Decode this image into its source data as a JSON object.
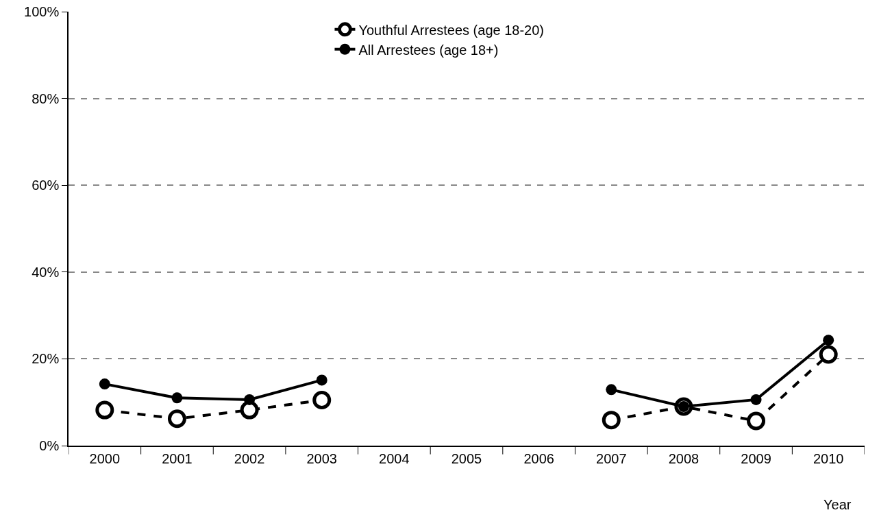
{
  "chart_data": {
    "type": "line",
    "xlabel": "Year",
    "categories": [
      "2000",
      "2001",
      "2002",
      "2003",
      "2004",
      "2005",
      "2006",
      "2007",
      "2008",
      "2009",
      "2010"
    ],
    "series": [
      {
        "name": "Youthful Arrestees (age 18-20)",
        "color": "#000000",
        "line_style": "dashed",
        "values": [
          8.2,
          6.2,
          8.2,
          10.5,
          null,
          null,
          null,
          5.9,
          9.0,
          5.7,
          21.0
        ]
      },
      {
        "name": "All Arrestees (age 18+)",
        "color": "#000000",
        "line_style": "solid",
        "values": [
          14.2,
          11.0,
          10.6,
          15.1,
          null,
          null,
          null,
          12.9,
          9.0,
          10.6,
          24.3
        ]
      }
    ],
    "ylim": [
      0,
      100
    ],
    "yticks": [
      {
        "value": 0,
        "label": "0%"
      },
      {
        "value": 20,
        "label": "20%"
      },
      {
        "value": 40,
        "label": "40%"
      },
      {
        "value": 60,
        "label": "60%"
      },
      {
        "value": 80,
        "label": "80%"
      },
      {
        "value": 100,
        "label": "100%"
      }
    ],
    "grid": "y",
    "legend": "top",
    "marker": "circle"
  }
}
